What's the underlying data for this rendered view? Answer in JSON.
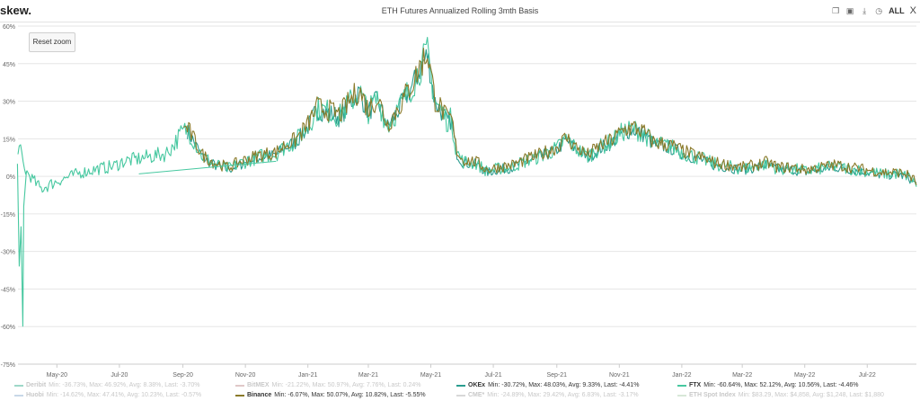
{
  "header": {
    "logo": "skew.",
    "title": "ETH Futures Annualized Rolling 3mth Basis",
    "tools": [
      "copy-icon",
      "camera-icon",
      "download-icon",
      "clock-icon"
    ],
    "all_label": "ALL",
    "close_label": "X"
  },
  "reset_zoom_label": "Reset zoom",
  "chart_data": {
    "type": "line",
    "title": "ETH Futures Annualized Rolling 3mth Basis",
    "xlabel": "",
    "ylabel": "",
    "ylim": [
      -75,
      60
    ],
    "y_ticks": [
      "60%",
      "45%",
      "30%",
      "15%",
      "0%",
      "-15%",
      "-30%",
      "-45%",
      "-60%",
      "-75%"
    ],
    "y_tick_values": [
      60,
      45,
      30,
      15,
      0,
      -15,
      -30,
      -45,
      -60,
      -75
    ],
    "x_ticks": [
      "May-20",
      "Jul-20",
      "Sep-20",
      "Nov-20",
      "Jan-21",
      "Mar-21",
      "May-21",
      "Jul-21",
      "Sep-21",
      "Nov-21",
      "Jan-22",
      "Mar-22",
      "May-22",
      "Jul-22"
    ],
    "x_range": [
      "2020-03-24",
      "2022-08-18"
    ],
    "grid": "horizontal",
    "legend_position": "bottom",
    "series": [
      {
        "name": "Deribit",
        "stats": "Min: -36.73%, Max: 46.92%, Avg: 8.38%, Last: -3.70%",
        "color": "#9ed8c8",
        "visible": false
      },
      {
        "name": "BitMEX",
        "stats": "Min: -21.22%, Max: 50.97%, Avg: 7.76%, Last: 0.24%",
        "color": "#e0c8c8",
        "visible": false
      },
      {
        "name": "OKEx",
        "stats": "Min: -30.72%, Max: 48.03%, Avg: 9.33%, Last: -4.41%",
        "color": "#2a9d8f",
        "visible": true
      },
      {
        "name": "FTX",
        "stats": "Min: -60.64%, Max: 52.12%, Avg: 10.56%, Last: -4.46%",
        "color": "#47c8a0",
        "visible": true
      },
      {
        "name": "Huobi",
        "stats": "Min: -14.62%, Max: 47.41%, Avg: 10.23%, Last: -0.57%",
        "color": "#c8d8e8",
        "visible": false
      },
      {
        "name": "Binance",
        "stats": "Min: -6.07%, Max: 50.07%, Avg: 10.82%, Last: -5.55%",
        "color": "#8a7a2a",
        "visible": true
      },
      {
        "name": "CME*",
        "stats": "Min: -24.89%, Max: 29.42%, Avg: 6.83%, Last: -3.17%",
        "color": "#d8d8d8",
        "visible": false
      },
      {
        "name": "ETH Spot Index",
        "stats": "Min: $83.29, Max: $4,858, Avg: $1,248, Last: $1,880",
        "color": "#d8e8d8",
        "visible": false
      }
    ],
    "profile": {
      "x": [
        "2020-03-24",
        "2020-03-27",
        "2020-03-30",
        "2020-04-05",
        "2020-04-15",
        "2020-05-01",
        "2020-05-20",
        "2020-06-10",
        "2020-06-25",
        "2020-07-05",
        "2020-07-20",
        "2020-08-01",
        "2020-08-15",
        "2020-08-22",
        "2020-08-30",
        "2020-09-05",
        "2020-09-12",
        "2020-09-20",
        "2020-10-01",
        "2020-10-15",
        "2020-11-01",
        "2020-11-15",
        "2020-12-01",
        "2020-12-10",
        "2020-12-20",
        "2021-01-01",
        "2021-01-10",
        "2021-01-20",
        "2021-02-01",
        "2021-02-10",
        "2021-02-20",
        "2021-03-01",
        "2021-03-10",
        "2021-03-20",
        "2021-04-01",
        "2021-04-08",
        "2021-04-15",
        "2021-04-21",
        "2021-04-28",
        "2021-05-05",
        "2021-05-12",
        "2021-05-17",
        "2021-05-21",
        "2021-05-26",
        "2021-06-01",
        "2021-06-15",
        "2021-06-25",
        "2021-07-05",
        "2021-07-20",
        "2021-08-01",
        "2021-08-15",
        "2021-09-01",
        "2021-09-10",
        "2021-09-20",
        "2021-10-01",
        "2021-10-15",
        "2021-10-25",
        "2021-11-05",
        "2021-11-15",
        "2021-11-25",
        "2021-12-05",
        "2021-12-20",
        "2022-01-05",
        "2022-01-20",
        "2022-02-01",
        "2022-02-15",
        "2022-03-01",
        "2022-03-15",
        "2022-03-25",
        "2022-04-05",
        "2022-04-20",
        "2022-05-01",
        "2022-05-15",
        "2022-06-01",
        "2022-06-15",
        "2022-07-01",
        "2022-07-15",
        "2022-08-01",
        "2022-08-10",
        "2022-08-18"
      ],
      "y": [
        12,
        9,
        3,
        0,
        -5,
        -2,
        1,
        3,
        4,
        6,
        7,
        8,
        9,
        12,
        17,
        19,
        14,
        8,
        5,
        3,
        6,
        8,
        9,
        12,
        14,
        20,
        27,
        26,
        24,
        29,
        34,
        26,
        31,
        20,
        28,
        33,
        38,
        44,
        49,
        30,
        26,
        22,
        23,
        10,
        6,
        5,
        2,
        3,
        4,
        6,
        8,
        11,
        15,
        11,
        8,
        12,
        14,
        18,
        19,
        17,
        13,
        12,
        9,
        7,
        5,
        4,
        3,
        4,
        5,
        3,
        3,
        2,
        3,
        4,
        3,
        2,
        1,
        1,
        0,
        -3
      ]
    }
  }
}
